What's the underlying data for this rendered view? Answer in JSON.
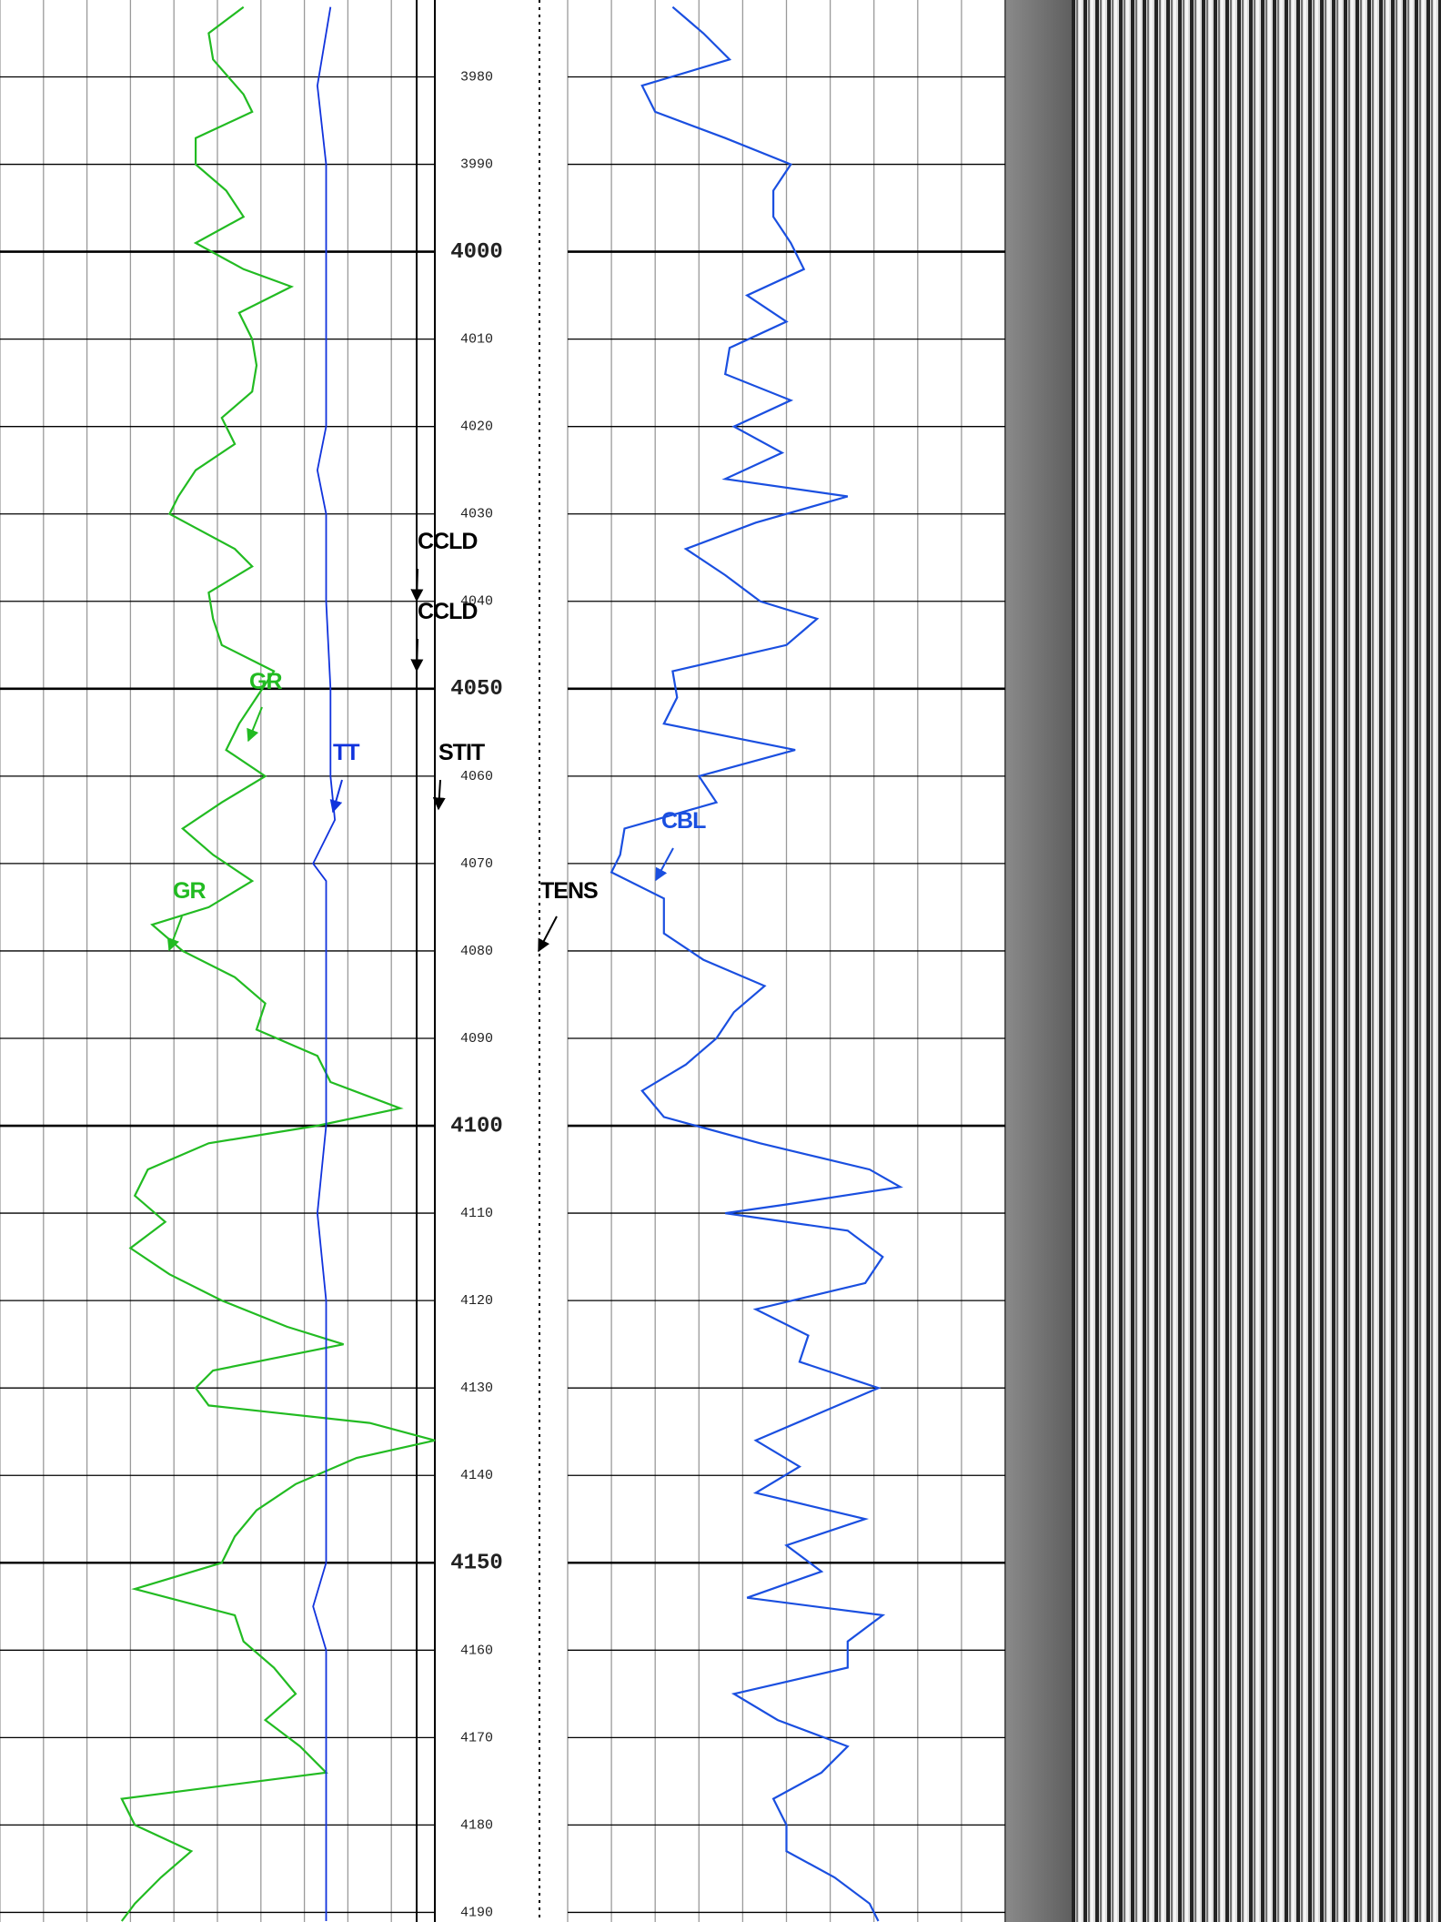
{
  "chart_data": [
    {
      "type": "line",
      "ylim": [
        3971.2,
        4191.1
      ],
      "xlim": [
        0,
        10
      ],
      "xticks": [
        0,
        1,
        2,
        3,
        4,
        5,
        6,
        7,
        8,
        9,
        10
      ],
      "yticks": [
        3980,
        3990,
        4000,
        4010,
        4020,
        4030,
        4040,
        4050,
        4060,
        4070,
        4080,
        4090,
        4100,
        4110,
        4120,
        4130,
        4140,
        4150,
        4160,
        4170,
        4180,
        4190
      ],
      "annotations": [
        "CCLD",
        "CCLD",
        "STIT",
        "TENS"
      ],
      "series": [
        {
          "name": "GR",
          "color": "#22bb22",
          "depth": [
            3972,
            3975,
            3978,
            3982,
            3984,
            3987,
            3990,
            3993,
            3996,
            3999,
            4002,
            4004,
            4007,
            4010,
            4013,
            4016,
            4019,
            4022,
            4025,
            4028,
            4030,
            4034,
            4036,
            4039,
            4042,
            4045,
            4048,
            4051,
            4054,
            4057,
            4060,
            4063,
            4066,
            4069,
            4072,
            4075,
            4077,
            4080,
            4083,
            4086,
            4089,
            4092,
            4095,
            4098,
            4100,
            4102,
            4105,
            4108,
            4111,
            4114,
            4117,
            4120,
            4123,
            4125,
            4128,
            4130,
            4132,
            4134,
            4136,
            4138,
            4141,
            4144,
            4147,
            4150,
            4153,
            4156,
            4159,
            4162,
            4165,
            4168,
            4171,
            4174,
            4177,
            4180,
            4183,
            4186,
            4189,
            4191
          ],
          "values": [
            5.6,
            4.8,
            4.9,
            5.6,
            5.8,
            4.5,
            4.5,
            5.2,
            5.6,
            4.5,
            5.6,
            6.7,
            5.5,
            5.8,
            5.9,
            5.8,
            5.1,
            5.4,
            4.5,
            4.1,
            3.9,
            5.4,
            5.8,
            4.8,
            4.9,
            5.1,
            6.3,
            5.9,
            5.5,
            5.2,
            6.1,
            5.1,
            4.2,
            4.9,
            5.8,
            4.8,
            3.5,
            4.2,
            5.4,
            6.1,
            5.9,
            7.3,
            7.6,
            9.2,
            7.3,
            4.8,
            3.4,
            3.1,
            3.8,
            3.0,
            3.9,
            5.1,
            6.6,
            7.9,
            4.9,
            4.5,
            4.8,
            8.5,
            10,
            8.2,
            6.8,
            5.9,
            5.4,
            5.1,
            3.1,
            5.4,
            5.6,
            6.3,
            6.8,
            6.1,
            6.9,
            7.5,
            2.8,
            3.1,
            4.4,
            3.7,
            3.1,
            2.8
          ]
        },
        {
          "name": "TT",
          "color": "#1133dd",
          "depth": [
            3972,
            3981,
            3990,
            4000,
            4010,
            4020,
            4025,
            4030,
            4040,
            4050,
            4060,
            4065,
            4070,
            4072,
            4080,
            4090,
            4100,
            4110,
            4120,
            4130,
            4140,
            4150,
            4155,
            4160,
            4170,
            4180,
            4191
          ],
          "values": [
            7.6,
            7.3,
            7.5,
            7.5,
            7.5,
            7.5,
            7.3,
            7.5,
            7.5,
            7.6,
            7.6,
            7.7,
            7.2,
            7.5,
            7.5,
            7.5,
            7.5,
            7.3,
            7.5,
            7.5,
            7.5,
            7.5,
            7.2,
            7.5,
            7.5,
            7.5,
            7.5
          ]
        }
      ]
    },
    {
      "type": "line",
      "xlim": [
        0,
        10
      ],
      "xticks": [
        0,
        1,
        2,
        3,
        4,
        5,
        6,
        7,
        8,
        9,
        10
      ],
      "series": [
        {
          "name": "CBL",
          "color": "#1a4fe0",
          "depth": [
            3972,
            3975,
            3978,
            3981,
            3984,
            3987,
            3990,
            3993,
            3996,
            3999,
            4002,
            4005,
            4008,
            4011,
            4014,
            4017,
            4020,
            4023,
            4026,
            4028,
            4031,
            4034,
            4037,
            4040,
            4042,
            4045,
            4048,
            4051,
            4054,
            4057,
            4060,
            4063,
            4066,
            4069,
            4071,
            4074,
            4078,
            4081,
            4084,
            4087,
            4090,
            4093,
            4096,
            4099,
            4102,
            4105,
            4107,
            4109,
            4110,
            4112,
            4115,
            4118,
            4121,
            4124,
            4127,
            4130,
            4133,
            4136,
            4139,
            4142,
            4145,
            4148,
            4151,
            4154,
            4156,
            4159,
            4162,
            4165,
            4168,
            4171,
            4174,
            4177,
            4180,
            4183,
            4186,
            4189,
            4191
          ],
          "values": [
            2.4,
            3.1,
            3.7,
            1.7,
            2.0,
            3.6,
            5.1,
            4.7,
            4.7,
            5.1,
            5.4,
            4.1,
            5.0,
            3.7,
            3.6,
            5.1,
            3.8,
            4.9,
            3.6,
            6.4,
            4.3,
            2.7,
            3.6,
            4.4,
            5.7,
            5.0,
            2.4,
            2.5,
            2.2,
            5.2,
            3.0,
            3.4,
            1.3,
            1.2,
            1.0,
            2.2,
            2.2,
            3.1,
            4.5,
            3.8,
            3.4,
            2.7,
            1.7,
            2.2,
            4.4,
            6.9,
            7.6,
            5.0,
            3.6,
            6.4,
            7.2,
            6.8,
            4.3,
            5.5,
            5.3,
            7.1,
            5.7,
            4.3,
            5.3,
            4.3,
            6.8,
            5.0,
            5.8,
            4.1,
            7.2,
            6.4,
            6.4,
            3.8,
            4.8,
            6.4,
            5.8,
            4.7,
            5.0,
            5.0,
            6.1,
            6.9,
            7.1
          ]
        }
      ]
    }
  ]
}
